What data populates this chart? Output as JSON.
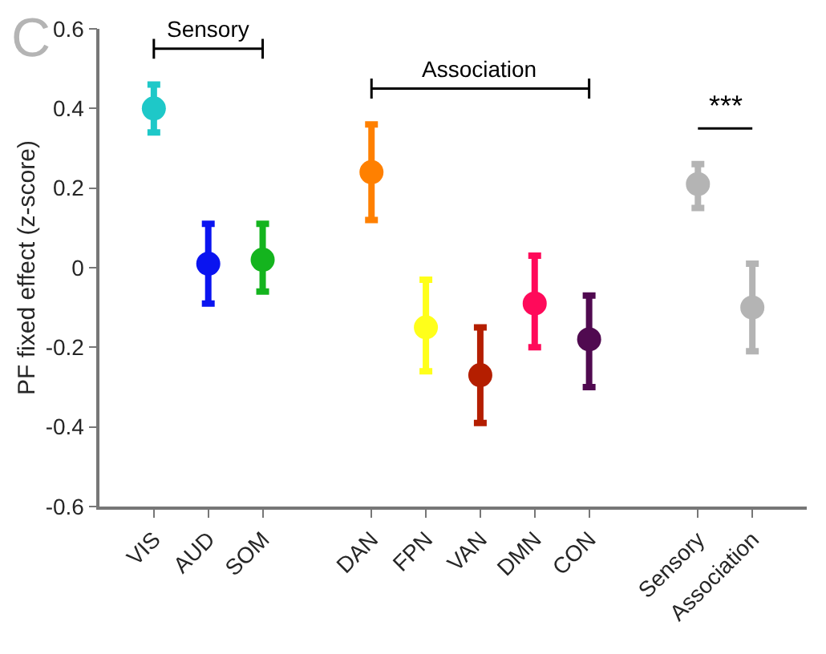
{
  "chart_data": {
    "type": "scatter",
    "ylabel": "PF fixed effect (z-score)",
    "categories": [
      "VIS",
      "AUD",
      "SOM",
      null,
      "DAN",
      "FPN",
      "VAN",
      "DMN",
      "CON",
      null,
      "Sensory",
      "Association"
    ],
    "values": [
      0.4,
      0.01,
      0.02,
      null,
      0.24,
      -0.15,
      -0.27,
      -0.09,
      -0.18,
      null,
      0.21,
      -0.1
    ],
    "errors": [
      [
        0.34,
        0.46
      ],
      [
        -0.09,
        0.11
      ],
      [
        -0.06,
        0.11
      ],
      null,
      [
        0.12,
        0.36
      ],
      [
        -0.26,
        -0.03
      ],
      [
        -0.39,
        -0.15
      ],
      [
        -0.2,
        0.03
      ],
      [
        -0.3,
        -0.07
      ],
      null,
      [
        0.15,
        0.26
      ],
      [
        -0.21,
        0.01
      ]
    ],
    "colors": [
      "#1ec8c8",
      "#0a14f0",
      "#14b41e",
      null,
      "#ff8000",
      "#ffff1a",
      "#b41e00",
      "#ff0a5a",
      "#500a50",
      null,
      "#b4b4b4",
      "#b4b4b4"
    ],
    "ylim": [
      -0.6,
      0.6
    ],
    "yticks": [
      -0.6,
      -0.4,
      -0.2,
      0,
      0.2,
      0.4,
      0.6
    ],
    "grid": false,
    "marker": "circle",
    "annotations": [
      "Sensory",
      "Association",
      "***",
      "C"
    ]
  }
}
